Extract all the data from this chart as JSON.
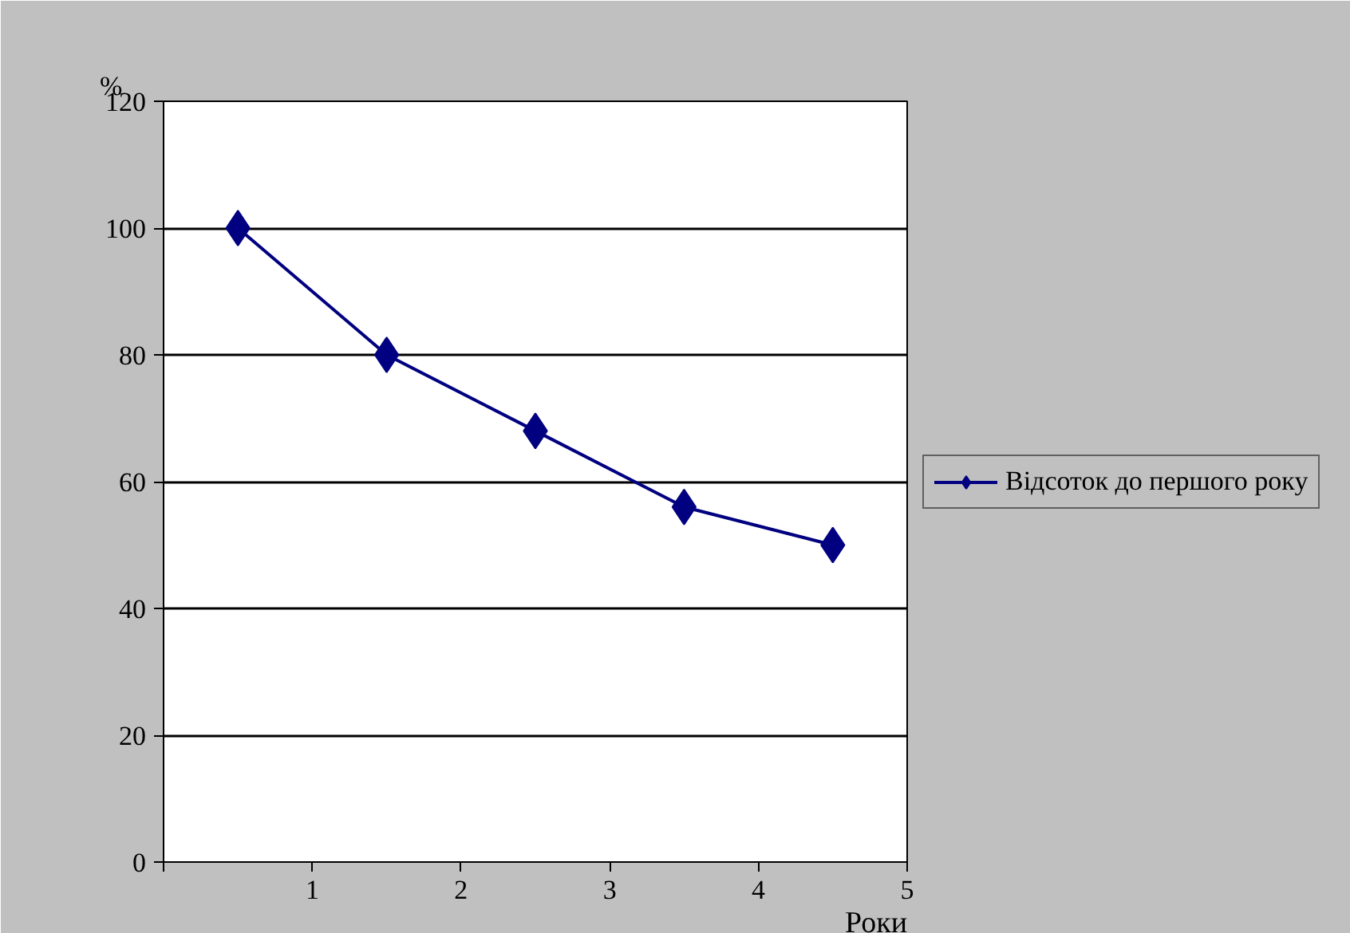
{
  "chart_data": {
    "type": "line",
    "xlabel": "Роки",
    "ylabel": "%",
    "x": [
      0.5,
      1.5,
      2.5,
      3.5,
      4.5
    ],
    "series": [
      {
        "name": "Відсоток до першого року",
        "color": "#000080",
        "values": [
          100,
          80,
          68,
          56,
          50
        ]
      }
    ],
    "xlim": [
      0,
      5
    ],
    "xticks": [
      {
        "value": 0,
        "label": null
      },
      1,
      2,
      3,
      4,
      5
    ],
    "ylim": [
      0,
      120
    ],
    "yticks": [
      0,
      20,
      40,
      60,
      80,
      100,
      120
    ],
    "grid": "y",
    "legend": "right",
    "marker": "diamond",
    "line_style": "solid"
  }
}
